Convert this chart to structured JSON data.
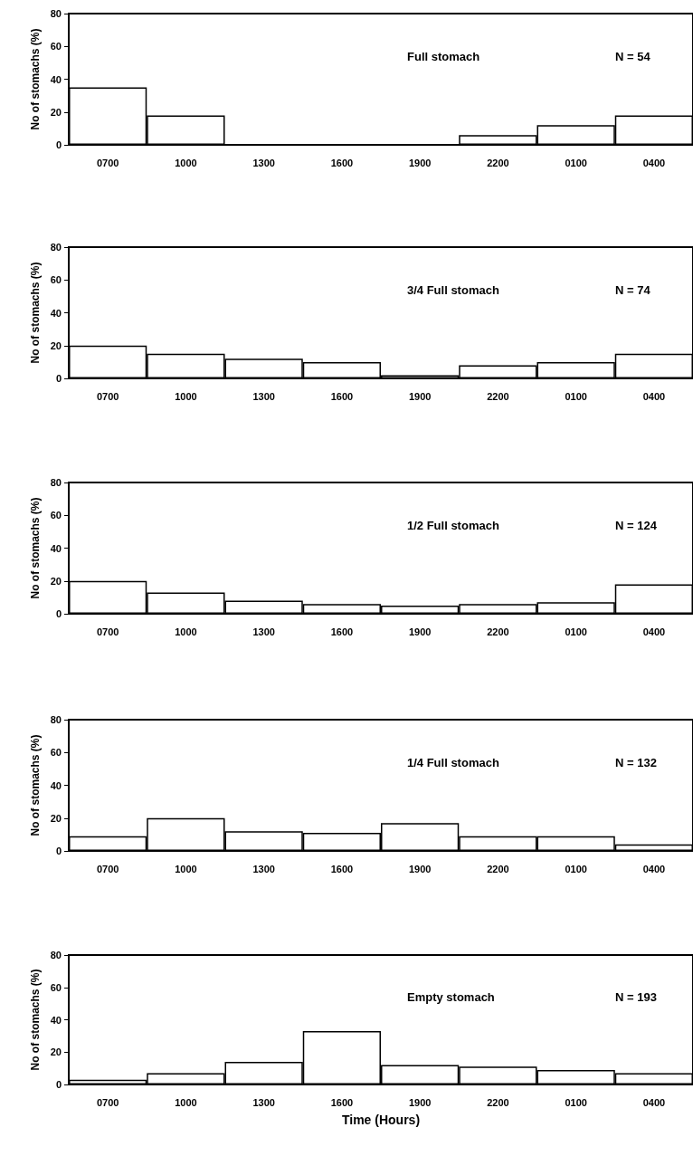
{
  "chart_data": [
    {
      "type": "bar",
      "categories": [
        "0700",
        "1000",
        "1300",
        "1600",
        "1900",
        "2200",
        "0100",
        "0400"
      ],
      "ylabel": "No of stomachs (%)",
      "annotations": [
        "Full stomach",
        "N = 54"
      ],
      "ylim": [
        0,
        80
      ],
      "yticks": [
        0,
        20,
        40,
        60,
        80
      ],
      "grid": false,
      "series": [
        {
          "color": "#ffffff",
          "values": [
            35,
            18,
            0,
            0,
            0,
            6,
            12,
            18
          ]
        }
      ]
    },
    {
      "type": "bar",
      "categories": [
        "0700",
        "1000",
        "1300",
        "1600",
        "1900",
        "2200",
        "0100",
        "0400"
      ],
      "ylabel": "No of stomachs (%)",
      "annotations": [
        "3/4 Full stomach",
        "N = 74"
      ],
      "ylim": [
        0,
        80
      ],
      "yticks": [
        0,
        20,
        40,
        60,
        80
      ],
      "grid": false,
      "series": [
        {
          "color": "#ffffff",
          "values": [
            20,
            15,
            12,
            10,
            2,
            8,
            10,
            15
          ]
        }
      ]
    },
    {
      "type": "bar",
      "categories": [
        "0700",
        "1000",
        "1300",
        "1600",
        "1900",
        "2200",
        "0100",
        "0400"
      ],
      "ylabel": "No of stomachs (%)",
      "annotations": [
        "1/2 Full stomach",
        "N = 124"
      ],
      "ylim": [
        0,
        80
      ],
      "yticks": [
        0,
        20,
        40,
        60,
        80
      ],
      "grid": false,
      "series": [
        {
          "color": "#ffffff",
          "values": [
            20,
            13,
            8,
            6,
            5,
            6,
            7,
            18
          ]
        }
      ]
    },
    {
      "type": "bar",
      "categories": [
        "0700",
        "1000",
        "1300",
        "1600",
        "1900",
        "2200",
        "0100",
        "0400"
      ],
      "ylabel": "No of stomachs (%)",
      "annotations": [
        "1/4 Full stomach",
        "N = 132"
      ],
      "ylim": [
        0,
        80
      ],
      "yticks": [
        0,
        20,
        40,
        60,
        80
      ],
      "grid": false,
      "series": [
        {
          "color": "#ffffff",
          "values": [
            9,
            20,
            12,
            11,
            17,
            9,
            9,
            4
          ]
        }
      ]
    },
    {
      "type": "bar",
      "categories": [
        "0700",
        "1000",
        "1300",
        "1600",
        "1900",
        "2200",
        "0100",
        "0400"
      ],
      "xlabel": "Time (Hours)",
      "ylabel": "No of stomachs (%)",
      "annotations": [
        "Empty stomach",
        "N = 193"
      ],
      "ylim": [
        0,
        80
      ],
      "yticks": [
        0,
        20,
        40,
        60,
        80
      ],
      "grid": false,
      "series": [
        {
          "color": "#ffffff",
          "values": [
            3,
            7,
            14,
            33,
            12,
            11,
            9,
            7
          ]
        }
      ]
    }
  ]
}
